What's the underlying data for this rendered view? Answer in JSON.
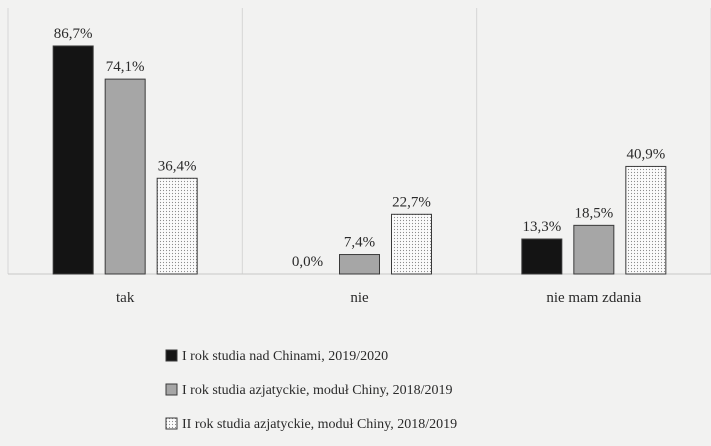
{
  "chart_data": {
    "type": "bar",
    "title": "",
    "xlabel": "",
    "ylabel": "",
    "ylim": [
      0,
      90
    ],
    "categories": [
      "tak",
      "nie",
      "nie mam zdania"
    ],
    "series": [
      {
        "name": "I rok studia nad Chinami, 2019/2020",
        "values": [
          86.7,
          0.0,
          13.3
        ],
        "labels": [
          "86,7%",
          "0,0%",
          "13,3%"
        ],
        "fill": "#141414",
        "pattern": "solid"
      },
      {
        "name": "I rok studia azjatyckie, moduł Chiny, 2018/2019",
        "values": [
          74.1,
          7.4,
          18.5
        ],
        "labels": [
          "74,1%",
          "7,4%",
          "18,5%"
        ],
        "fill": "#a6a6a6",
        "pattern": "solid"
      },
      {
        "name": "II rok studia azjatyckie, moduł Chiny, 2018/2019",
        "values": [
          36.4,
          22.7,
          40.9
        ],
        "labels": [
          "36,4%",
          "22,7%",
          "40,9%"
        ],
        "fill": "#f7f7f7",
        "pattern": "dots"
      }
    ],
    "grid": false,
    "legend_position": "bottom"
  },
  "colors": {
    "background": "#f2f2f1",
    "divider": "#d6d6d6",
    "axis": "#c8c8c8",
    "text": "#2a2a2a",
    "bar_outline": "#3a3a3a"
  }
}
